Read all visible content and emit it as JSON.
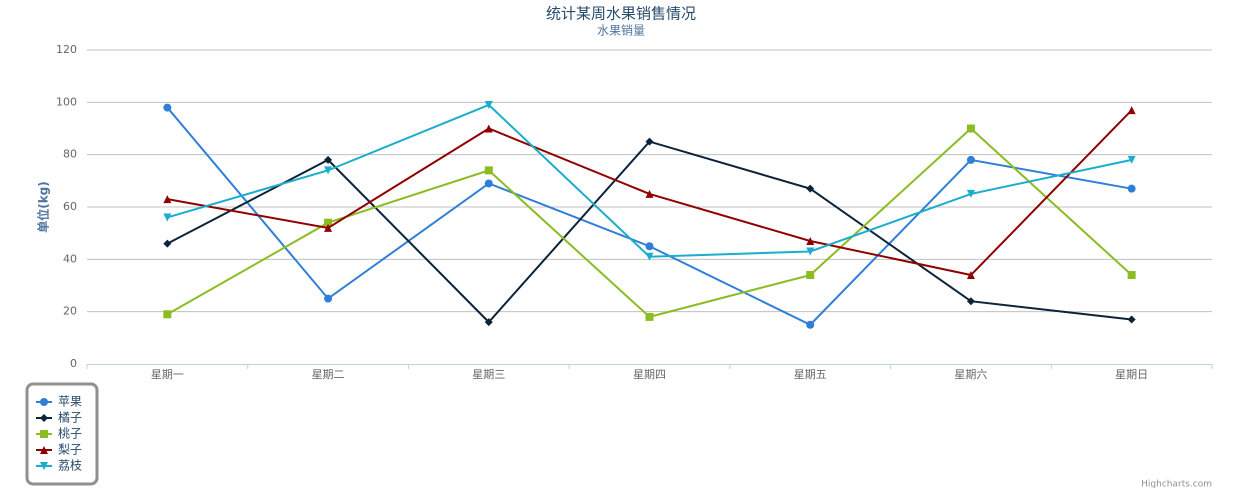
{
  "chart_data": {
    "type": "line",
    "title": "统计某周水果销售情况",
    "subtitle": "水果销量",
    "y_label": "单位(kg)",
    "credits": "Highcharts.com",
    "categories": [
      "星期一",
      "星期二",
      "星期三",
      "星期四",
      "星期五",
      "星期六",
      "星期日"
    ],
    "series": [
      {
        "name": "苹果",
        "color": "#2f7ed8",
        "marker": "circle",
        "values": [
          98,
          25,
          69,
          45,
          15,
          78,
          67
        ]
      },
      {
        "name": "橘子",
        "color": "#0d233a",
        "marker": "diamond",
        "values": [
          46,
          78,
          16,
          85,
          67,
          24,
          17
        ]
      },
      {
        "name": "桃子",
        "color": "#8bbc21",
        "marker": "square",
        "values": [
          19,
          54,
          74,
          18,
          34,
          90,
          34
        ]
      },
      {
        "name": "梨子",
        "color": "#910000",
        "marker": "triangle",
        "values": [
          63,
          52,
          90,
          65,
          47,
          34,
          97
        ]
      },
      {
        "name": "荔枝",
        "color": "#1aadce",
        "marker": "triangle-down",
        "values": [
          56,
          74,
          99,
          41,
          43,
          65,
          78
        ]
      }
    ],
    "ylim": [
      0,
      120
    ],
    "yticks": [
      0,
      20,
      40,
      60,
      80,
      100,
      120
    ],
    "grid": true,
    "legend": "bottom-left"
  }
}
